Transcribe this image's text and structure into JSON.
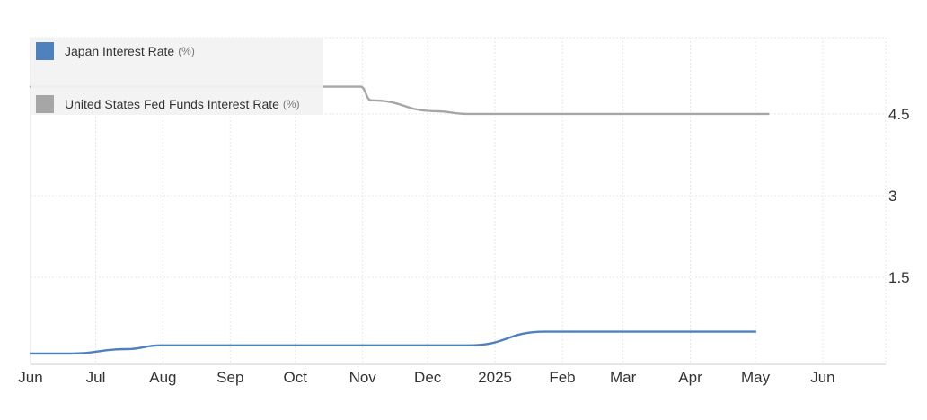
{
  "chart_data": {
    "type": "line",
    "title": "",
    "xlabel": "",
    "ylabel": "",
    "x_start": "2024-06-01",
    "x_end": "2025-06-30",
    "ylim": [
      -0.1,
      5.9
    ],
    "y_ticks": [
      1.5,
      3,
      4.5
    ],
    "y_tick_labels": [
      "1.5",
      "3",
      "4.5"
    ],
    "y_axis_side": "right",
    "grid": true,
    "legend_position": "top-left",
    "x_ticks": [
      {
        "date": "2024-06-01",
        "label": "Jun"
      },
      {
        "date": "2024-07-01",
        "label": "Jul"
      },
      {
        "date": "2024-08-01",
        "label": "Aug"
      },
      {
        "date": "2024-09-01",
        "label": "Sep"
      },
      {
        "date": "2024-10-01",
        "label": "Oct"
      },
      {
        "date": "2024-11-01",
        "label": "Nov"
      },
      {
        "date": "2024-12-01",
        "label": "Dec"
      },
      {
        "date": "2025-01-01",
        "label": "2025"
      },
      {
        "date": "2025-02-01",
        "label": "Feb"
      },
      {
        "date": "2025-03-01",
        "label": "Mar"
      },
      {
        "date": "2025-04-01",
        "label": "Apr"
      },
      {
        "date": "2025-05-01",
        "label": "May"
      },
      {
        "date": "2025-06-01",
        "label": "Jun"
      }
    ],
    "series": [
      {
        "name": "Japan Interest Rate",
        "unit": "(%)",
        "color": "#4f81bd",
        "points": [
          {
            "x": "2024-06-01",
            "y": 0.1
          },
          {
            "x": "2024-06-20",
            "y": 0.1
          },
          {
            "x": "2024-07-15",
            "y": 0.18
          },
          {
            "x": "2024-07-31",
            "y": 0.25
          },
          {
            "x": "2024-12-20",
            "y": 0.25
          },
          {
            "x": "2025-01-24",
            "y": 0.5
          },
          {
            "x": "2025-05-01",
            "y": 0.5
          }
        ]
      },
      {
        "name": "United States Fed Funds Interest Rate",
        "unit": "(%)",
        "color": "#a6a6a6",
        "points": [
          {
            "x": "2024-06-01",
            "y": 5.0
          },
          {
            "x": "2024-10-31",
            "y": 5.0
          },
          {
            "x": "2024-11-05",
            "y": 4.75
          },
          {
            "x": "2024-12-05",
            "y": 4.55
          },
          {
            "x": "2024-12-19",
            "y": 4.5
          },
          {
            "x": "2025-05-07",
            "y": 4.5
          }
        ]
      }
    ]
  }
}
